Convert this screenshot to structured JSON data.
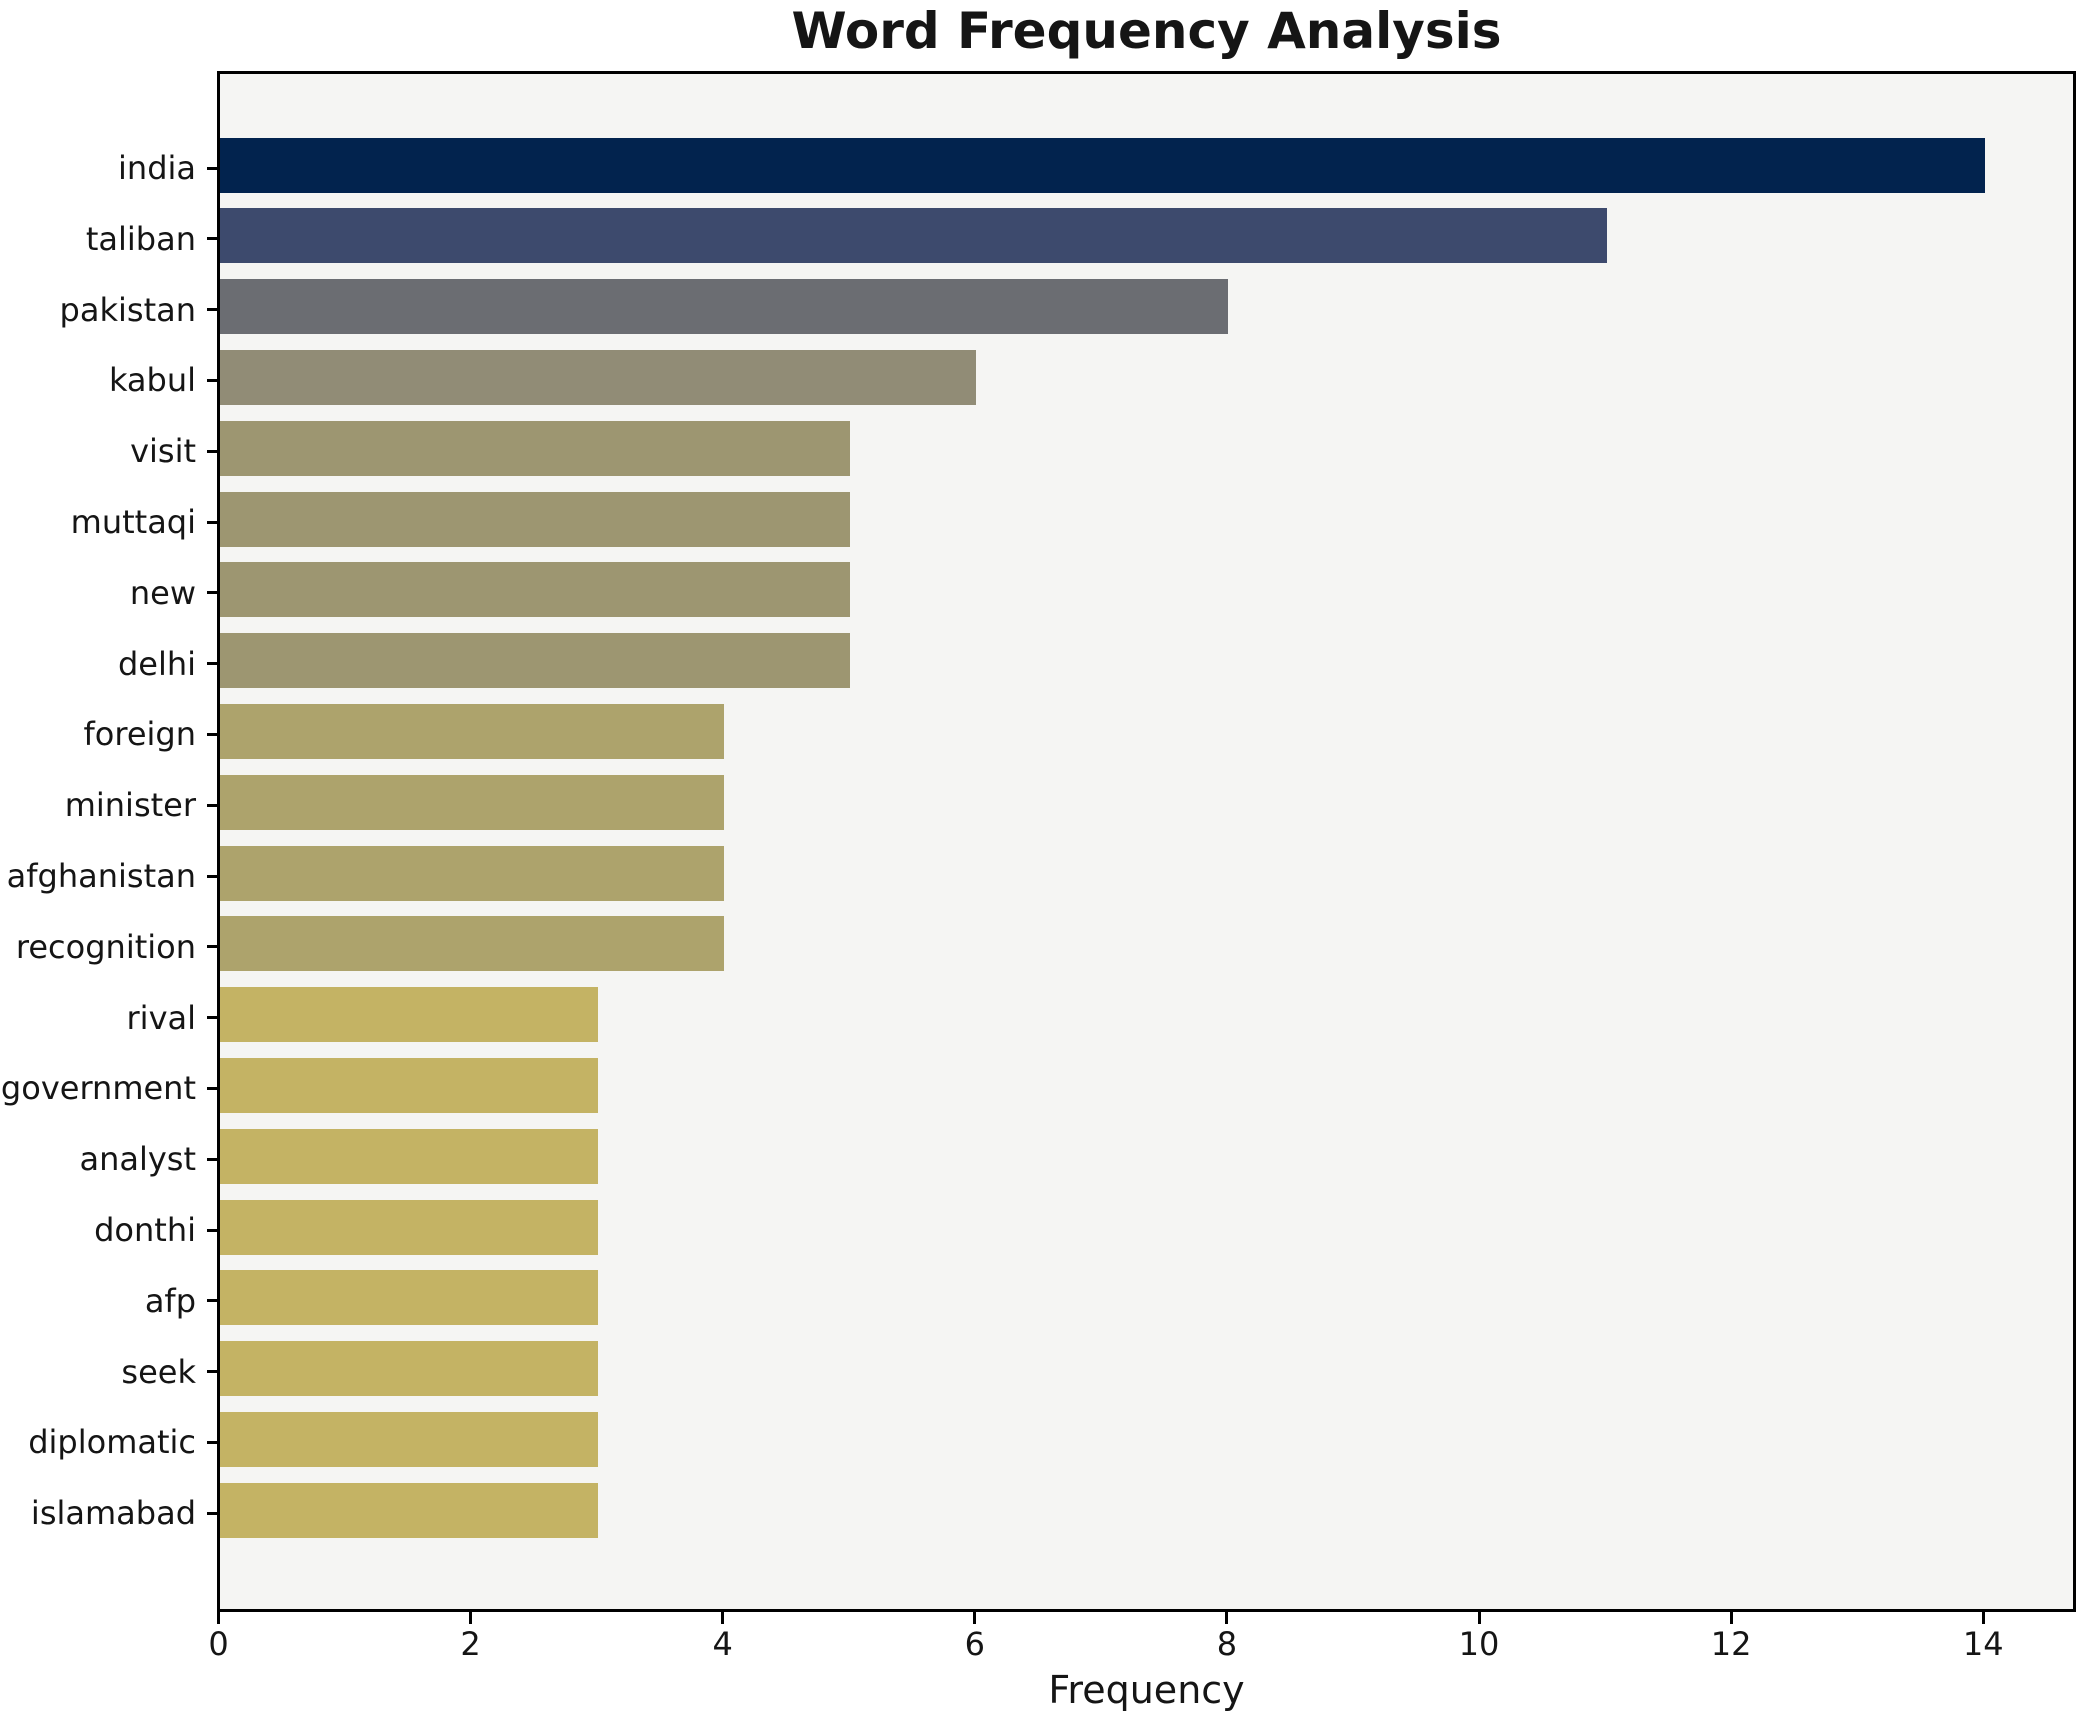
{
  "chart_data": {
    "type": "bar",
    "orientation": "horizontal",
    "title": "Word Frequency Analysis",
    "xlabel": "Frequency",
    "ylabel": "",
    "categories": [
      "india",
      "taliban",
      "pakistan",
      "kabul",
      "visit",
      "muttaqi",
      "new",
      "delhi",
      "foreign",
      "minister",
      "afghanistan",
      "recognition",
      "rival",
      "government",
      "analyst",
      "donthi",
      "afp",
      "seek",
      "diplomatic",
      "islamabad"
    ],
    "values": [
      14,
      11,
      8,
      6,
      5,
      5,
      5,
      5,
      4,
      4,
      4,
      4,
      3,
      3,
      3,
      3,
      3,
      3,
      3,
      3
    ],
    "bar_colors": [
      "#02234e",
      "#3d4a6d",
      "#6b6d72",
      "#918c76",
      "#9d9671",
      "#9d9671",
      "#9d9671",
      "#9d9671",
      "#ada36c",
      "#ada36c",
      "#ada36c",
      "#ada36c",
      "#c4b364",
      "#c4b364",
      "#c4b364",
      "#c4b364",
      "#c4b364",
      "#c4b364",
      "#c4b364",
      "#c4b364"
    ],
    "xlim": [
      0,
      14.7
    ],
    "xticks": [
      0,
      2,
      4,
      6,
      8,
      10,
      12,
      14
    ],
    "grid": false,
    "legend": null,
    "colors": {
      "plot_background": "#f5f5f3",
      "figure_background": "#ffffff",
      "axis_color": "#000000",
      "text_color": "#151515"
    }
  }
}
